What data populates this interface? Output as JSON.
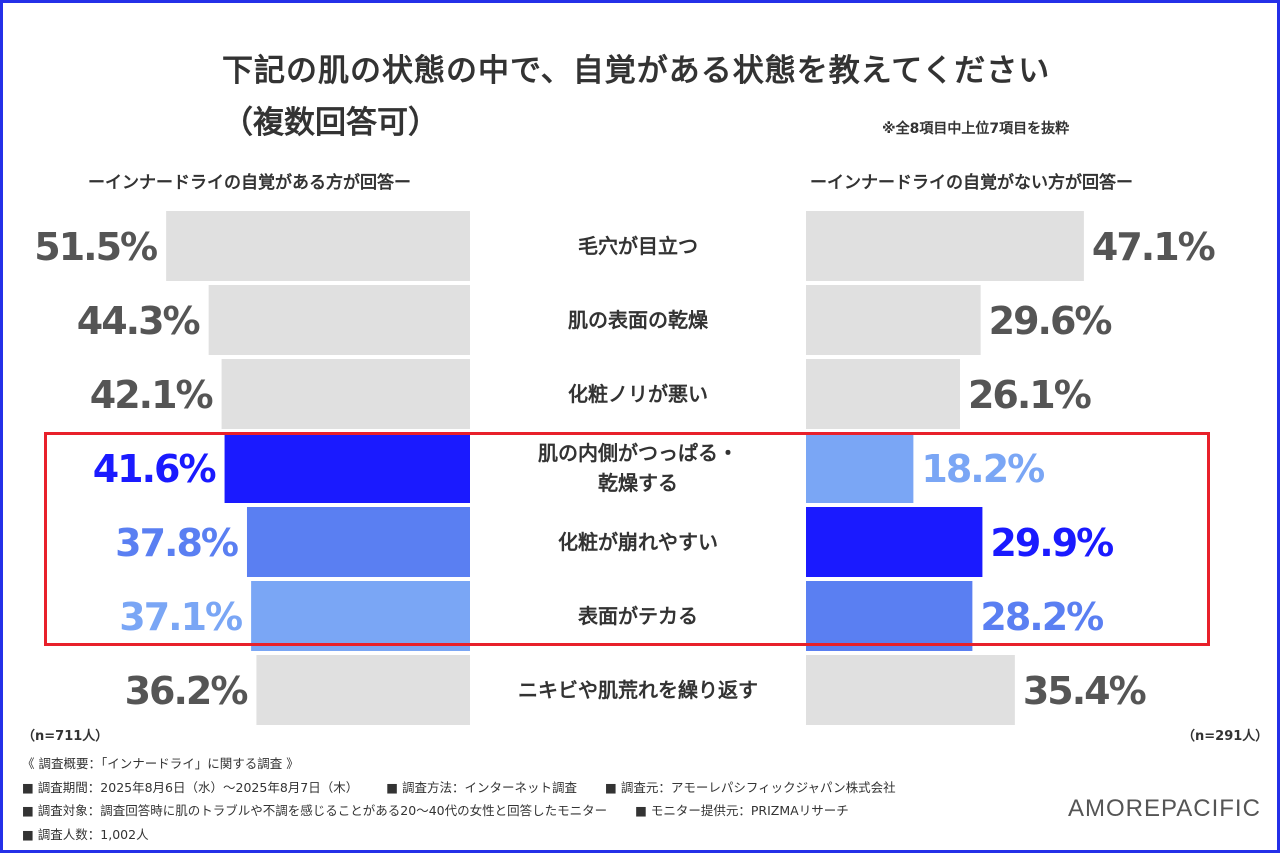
{
  "title_line1": "下記の肌の状態の中で、自覚がある状態を教えてください",
  "title_line2": "（複数回答可）",
  "note": "※全8項目中上位7項目を抜粋",
  "logo": "AMOREPACIFIC",
  "colors": {
    "border": "#2430e8",
    "highlight_box": "#e8202a",
    "gray_bar": "#e0e0e0",
    "gray_label": "#555555",
    "blue_1": "#1a1aff",
    "blue_2": "#5a7ff2",
    "blue_3": "#7aa6f5"
  },
  "chart_data": {
    "type": "bar",
    "orientation": "horizontal-butterfly",
    "categories": [
      "毛穴が目立つ",
      "肌の表面の乾燥",
      "化粧ノリが悪い",
      "肌の内側がつっぱる・\n乾燥する",
      "化粧が崩れやすい",
      "表面がテカる",
      "ニキビや肌荒れを繰り返す"
    ],
    "series": [
      {
        "name": "ーインナードライの自覚がある方が回答ー",
        "values": [
          51.5,
          44.3,
          42.1,
          41.6,
          37.8,
          37.1,
          36.2
        ],
        "labels": [
          "51.5%",
          "44.3%",
          "42.1%",
          "41.6%",
          "37.8%",
          "37.1%",
          "36.2%"
        ],
        "colors": [
          "#e0e0e0",
          "#e0e0e0",
          "#e0e0e0",
          "#1a1aff",
          "#5a7ff2",
          "#7aa6f5",
          "#e0e0e0"
        ],
        "n": "（n=711人）"
      },
      {
        "name": "ーインナードライの自覚がない方が回答ー",
        "values": [
          47.1,
          29.6,
          26.1,
          18.2,
          29.9,
          28.2,
          35.4
        ],
        "labels": [
          "47.1%",
          "29.6%",
          "26.1%",
          "18.2%",
          "29.9%",
          "28.2%",
          "35.4%"
        ],
        "colors": [
          "#e0e0e0",
          "#e0e0e0",
          "#e0e0e0",
          "#7aa6f5",
          "#1a1aff",
          "#5a7ff2",
          "#e0e0e0"
        ],
        "n": "（n=291人）"
      }
    ],
    "highlighted_categories": [
      "肌の内側がつっぱる・\n乾燥する",
      "化粧が崩れやすい",
      "表面がテカる"
    ],
    "unit": "%"
  },
  "survey": {
    "header": "《 調査概要：「インナードライ」に関する調査 》",
    "period": "■ 調査期間：2025年8月6日（水）〜2025年8月7日（木）",
    "method": "■ 調査方法：インターネット調査",
    "organizer": "■ 調査元：アモーレパシフィックジャパン株式会社",
    "target": "■ 調査対象：調査回答時に肌のトラブルや不調を感じることがある20〜40代の女性と回答したモニター",
    "provider": "■ モニター提供元：PRIZMAリサーチ",
    "count": "■ 調査人数：1,002人"
  }
}
